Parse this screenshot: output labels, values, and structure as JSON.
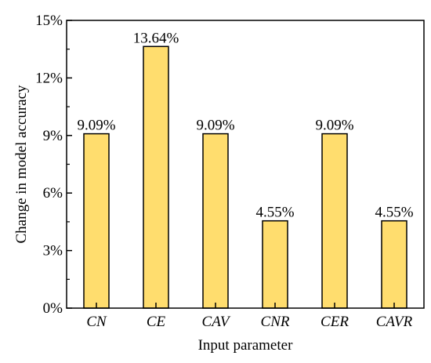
{
  "chart_data": {
    "type": "bar",
    "title": "",
    "xlabel": "Input parameter",
    "ylabel": "Change in model accuracy",
    "categories": [
      "CN",
      "CE",
      "CAV",
      "CNR",
      "CER",
      "CAVR"
    ],
    "values": [
      9.09,
      13.64,
      9.09,
      4.55,
      9.09,
      4.55
    ],
    "data_labels": [
      "9.09%",
      "13.64%",
      "9.09%",
      "4.55%",
      "9.09%",
      "4.55%"
    ],
    "ylim": [
      0,
      15
    ],
    "yticks": [
      0,
      3,
      6,
      9,
      12,
      15
    ],
    "ytick_labels": [
      "0%",
      "3%",
      "6%",
      "9%",
      "12%",
      "15%"
    ],
    "grid": false,
    "bar_color": "#FFDD6E",
    "bar_edge_color": "#000000"
  }
}
